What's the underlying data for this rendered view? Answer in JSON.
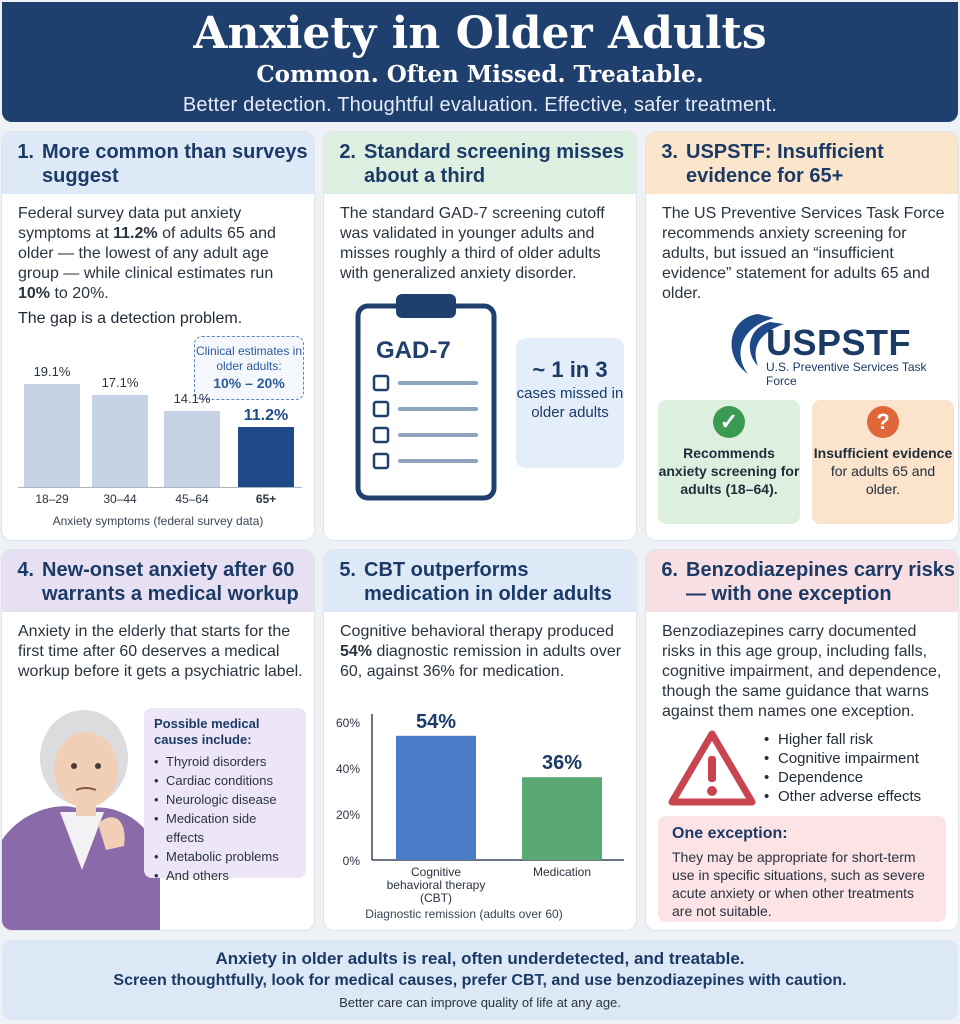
{
  "header": {
    "title": "Anxiety in Older Adults",
    "subtitle": "Common. Often Missed. Treatable.",
    "tagline": "Better detection. Thoughtful evaluation. Effective, safer treatment."
  },
  "card1": {
    "num": "1.",
    "title": "More common than surveys suggest",
    "text_a": "Federal survey data put anxiety symptoms at ",
    "text_b": "11.2%",
    "text_c": " of adults 65 and older — the lowest of any adult age group — while clinical estimates run ",
    "text_d": "10%",
    "text_e": " to 20%.",
    "gap": "The gap is a detection problem.",
    "callout_label": "Clinical estimates in older adults:",
    "callout_value": "10% – 20%",
    "caption": "Anxiety symptoms (federal survey data)"
  },
  "card2": {
    "num": "2.",
    "title": "Standard screening misses about a third",
    "text": "The standard GAD-7 screening cutoff was validated in younger adults and misses roughly a third of older adults with generalized anxiety disorder.",
    "clipboard_label": "GAD-7",
    "stat_big": "~ 1 in 3",
    "stat_small": "cases missed in older adults"
  },
  "card3": {
    "num": "3.",
    "title": "USPSTF: Insufficient evidence for 65+",
    "text": "The US Preventive Services Task Force recommends anxiety screening for adults, but issued an “insufficient evidence” statement for adults 65 and older.",
    "logo_text": "USPSTF",
    "logo_sub": "U.S. Preventive Services Task Force",
    "rec_bold": "Recommends anxiety screening for adults (18–64).",
    "ins_bold": "Insufficient evidence",
    "ins_text": "for adults 65 and older.",
    "check_icon": "✓",
    "question_icon": "?"
  },
  "card4": {
    "num": "4.",
    "title": "New-onset anxiety after 60 warrants a medical workup",
    "text": "Anxiety in the elderly that starts for the first time after 60 deserves a medical workup before it gets a psychiatric label.",
    "causes_title": "Possible medical causes include:",
    "causes": [
      "Thyroid disorders",
      "Cardiac conditions",
      "Neurologic disease",
      "Medication side effects",
      "Metabolic problems",
      "And others"
    ]
  },
  "card5": {
    "num": "5.",
    "title": "CBT outperforms medication in older adults",
    "text_a": "Cognitive behavioral therapy produced ",
    "text_b": "54%",
    "text_c": " diagnostic remission in adults over 60, against 36% for medication."
  },
  "card6": {
    "num": "6.",
    "title": "Benzodiazepines carry risks — with one exception",
    "text": "Benzodiazepines carry documented risks in this age group, including falls, cognitive impairment, and dependence, though the same guidance that warns against them names one exception.",
    "risks": [
      "Higher fall risk",
      "Cognitive impairment",
      "Dependence",
      "Other adverse effects"
    ],
    "exception_title": "One exception:",
    "exception_text": "They may be appropriate for short-term use in specific situations, such as severe acute anxiety or when other treatments are not suitable."
  },
  "footer": {
    "line1": "Anxiety in older adults is real, often underdetected, and treatable.",
    "line2": "Screen thoughtfully, look for medical causes, prefer CBT, and use benzodiazepines with caution.",
    "line3": "Better care can improve quality of life at any age."
  },
  "colors": {
    "navy": "#1f3f6e",
    "bar_light": "#c5d3e4",
    "bar_dark": "#1f4a8a",
    "cbt_bar": "#4a7dc8",
    "med_bar": "#5aa874",
    "warning_red": "#c8454f"
  },
  "chart_data": [
    {
      "type": "bar",
      "categories": [
        "18–29",
        "30–44",
        "45–64",
        "65+"
      ],
      "values": [
        19.1,
        17.1,
        14.1,
        11.2
      ],
      "value_labels": [
        "19.1%",
        "17.1%",
        "14.1%",
        "11.2%"
      ],
      "title": "",
      "xlabel": "Anxiety symptoms (federal survey data)",
      "ylabel": "",
      "ylim": [
        0,
        20
      ],
      "grid": false
    },
    {
      "type": "bar",
      "categories": [
        "Cognitive behavioral therapy (CBT)",
        "Medication"
      ],
      "values": [
        54,
        36
      ],
      "value_labels": [
        "54%",
        "36%"
      ],
      "title": "",
      "xlabel": "Diagnostic remission (adults over 60)",
      "ylabel": "",
      "yticks": [
        "0%",
        "20%",
        "40%",
        "60%"
      ],
      "ylim": [
        0,
        60
      ],
      "grid": false
    }
  ]
}
